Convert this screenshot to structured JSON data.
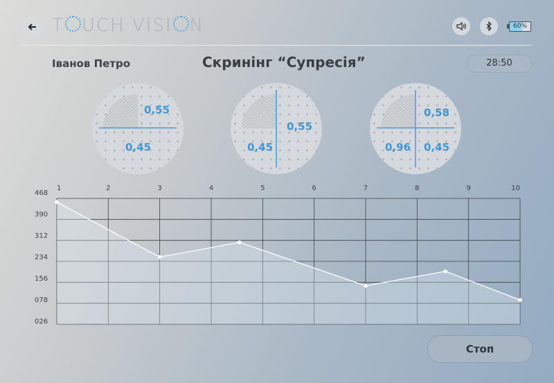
{
  "header": {
    "logo_left": "T",
    "logo_mid": "UCH VISI",
    "logo_right": "N",
    "battery": "60%",
    "icons": {
      "back": "back-arrow-icon",
      "sound": "speaker-icon",
      "bluetooth": "bluetooth-icon",
      "battery": "battery-icon"
    }
  },
  "patient_name": "Іванов Петро",
  "screen_title": "Скринінг “Супресія”",
  "timer": "28:50",
  "disks": [
    {
      "values": [
        "0,55",
        "0,45"
      ]
    },
    {
      "values": [
        "0,55",
        "0,45"
      ]
    },
    {
      "values": [
        "0,58",
        "0,96",
        "0,45"
      ]
    }
  ],
  "chart_data": {
    "type": "line",
    "x_ticks": [
      "1",
      "2",
      "3",
      "4",
      "5",
      "6",
      "7",
      "8",
      "9",
      "10"
    ],
    "y_ticks": [
      "468",
      "390",
      "312",
      "234",
      "156",
      "078",
      "026"
    ],
    "ylim": [
      26,
      468
    ],
    "xlim": [
      1,
      10
    ],
    "points": [
      {
        "x": 1,
        "y": 455
      },
      {
        "x": 3,
        "y": 262
      },
      {
        "x": 4.55,
        "y": 314
      },
      {
        "x": 7,
        "y": 161
      },
      {
        "x": 8.55,
        "y": 212
      },
      {
        "x": 10,
        "y": 111
      }
    ],
    "grid": true,
    "colors": {
      "line": "#ffffff",
      "grid": "#3c4147"
    }
  },
  "stop_label": "Стоп"
}
